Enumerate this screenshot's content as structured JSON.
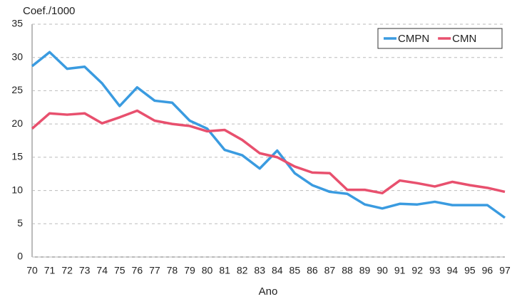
{
  "chart_data": {
    "type": "line",
    "y_label": "Coef./1000",
    "x_label": "Ano",
    "categories": [
      "70",
      "71",
      "72",
      "73",
      "74",
      "75",
      "76",
      "77",
      "78",
      "79",
      "80",
      "81",
      "82",
      "83",
      "84",
      "85",
      "86",
      "87",
      "88",
      "89",
      "90",
      "91",
      "92",
      "93",
      "94",
      "95",
      "96",
      "97"
    ],
    "series": [
      {
        "name": "CMPN",
        "color": "#3a9be0",
        "values": [
          28.7,
          30.8,
          28.3,
          28.6,
          26.1,
          22.7,
          25.5,
          23.5,
          23.2,
          20.5,
          19.3,
          16.1,
          15.3,
          13.3,
          16.0,
          12.6,
          10.8,
          9.8,
          9.5,
          7.9,
          7.3,
          8.0,
          7.9,
          8.3,
          7.8,
          7.8,
          7.8,
          5.9
        ]
      },
      {
        "name": "CMN",
        "color": "#e8506e",
        "values": [
          19.3,
          21.6,
          21.4,
          21.6,
          20.1,
          21.0,
          22.0,
          20.5,
          20.0,
          19.7,
          18.9,
          19.1,
          17.6,
          15.6,
          15.0,
          13.6,
          12.7,
          12.6,
          10.1,
          10.1,
          9.6,
          11.5,
          11.1,
          10.6,
          11.3,
          10.8,
          10.4,
          9.8
        ]
      }
    ],
    "ylim": [
      0,
      35
    ],
    "yticks": [
      0,
      5,
      10,
      15,
      20,
      25,
      30,
      35
    ],
    "grid": true,
    "legend": "top-right"
  }
}
